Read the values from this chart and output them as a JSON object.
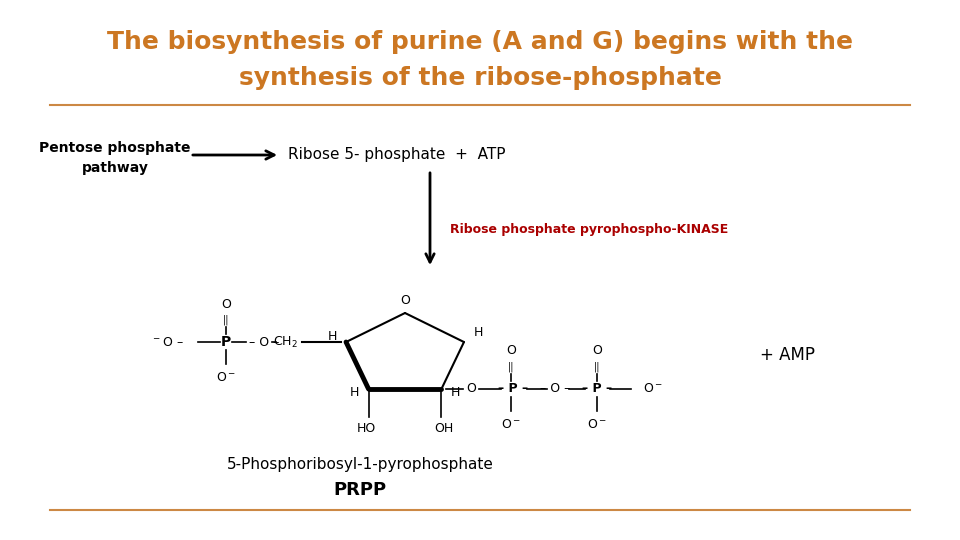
{
  "title_line1": "The biosynthesis of purine (A and G) begins with the",
  "title_line2": "synthesis of the ribose-phosphate",
  "title_color": "#CC7722",
  "title_fontsize": 18,
  "bg_color": "#FFFFFF",
  "separator_color": "#CC8844",
  "left_label_line1": "Pentose phosphate",
  "left_label_line2": "pathway",
  "ribose_text": "Ribose 5- phosphate  +  ATP",
  "enzyme_text": "Ribose phosphate pyrophospho-KINASE",
  "enzyme_color": "#AA0000",
  "prpp_label": "5-Phosphoribosyl-1-pyrophosphate",
  "prpp_label2": "PRPP",
  "amp_text": "+ AMP"
}
